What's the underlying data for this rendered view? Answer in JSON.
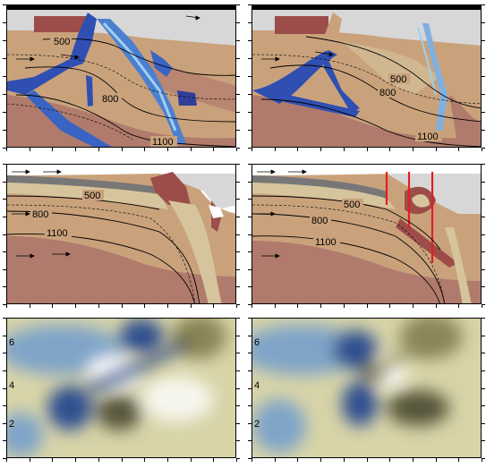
{
  "panels": {
    "top_left": {
      "contours": [
        "500",
        "800",
        "1100"
      ]
    },
    "top_right": {
      "contours": [
        "500",
        "800",
        "1100"
      ]
    },
    "middle_left": {
      "contours": [
        "500",
        "800",
        "1100"
      ]
    },
    "middle_right": {
      "contours": [
        "500",
        "800",
        "1100"
      ]
    }
  },
  "bottom_left": {
    "yticks": [
      "6",
      "4",
      "2"
    ]
  },
  "bottom_right": {
    "yticks": [
      "6",
      "4",
      "2"
    ]
  },
  "colors": {
    "mantle_light": "#c9a27c",
    "mantle_dark": "#b07b6c",
    "crust_dark": "#9c4d4a",
    "sediment": "#d6c59c",
    "water_gray": "#d7d7d7",
    "slab_gray": "#777777",
    "blue_flow": "#2f4fb2",
    "blue_light": "#7fb0e0",
    "field_tan": "#d8d4a8",
    "field_dark": "#56543a",
    "field_blue": "#2f4f8f",
    "dike_red": "#e02020"
  }
}
